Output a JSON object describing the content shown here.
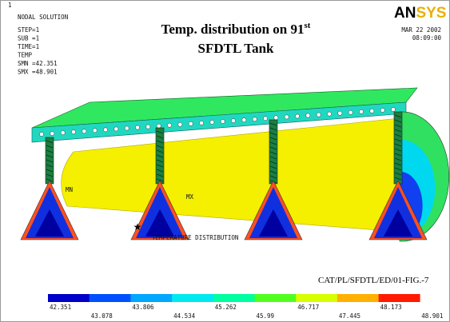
{
  "corner_number": "1",
  "info": {
    "heading": "NODAL SOLUTION",
    "lines": [
      "STEP=1",
      "SUB =1",
      "TIME=1",
      "TEMP",
      "SMN =42.351",
      "SMX =48.901"
    ]
  },
  "title": {
    "line1": "Temp. distribution on 91",
    "superscript": "st",
    "line2": "SFDTL Tank"
  },
  "logo": "ANSYS",
  "date": "MAR 22 2002",
  "time": "08:09:00",
  "annotations": {
    "min": "MN",
    "max": "MX",
    "caption": "TEMPERATURE DISTRIBUTION",
    "figure_id": "CAT/PL/SFDTL/ED/01-FIG.-7"
  },
  "legend": {
    "labels": [
      "42.351",
      "43.078",
      "43.806",
      "44.534",
      "45.262",
      "45.99",
      "46.717",
      "47.445",
      "48.173",
      "48.901"
    ],
    "colors": [
      "#0000c8",
      "#0050ff",
      "#00a8ff",
      "#00e8f0",
      "#00ffa0",
      "#50ff20",
      "#d8ff00",
      "#ffb000",
      "#ff1a00"
    ]
  }
}
